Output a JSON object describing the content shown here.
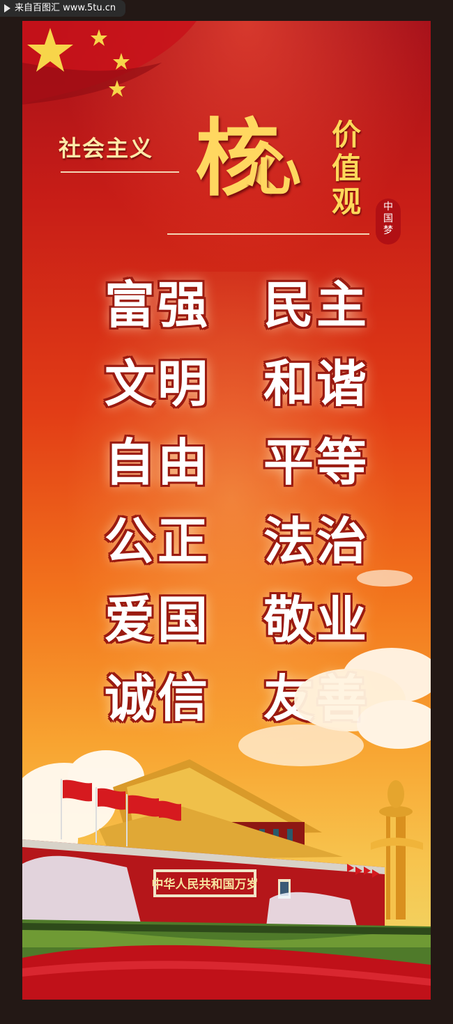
{
  "watermark": {
    "text": "来自百图汇 www.5tu.cn"
  },
  "header": {
    "left_title": "社会主义",
    "big_char_1": "核",
    "big_char_2": "心",
    "vertical_title": [
      "价",
      "值",
      "观"
    ],
    "badge_text": [
      "中",
      "国",
      "梦"
    ]
  },
  "values": [
    [
      "富强",
      "民主"
    ],
    [
      "文明",
      "和谐"
    ],
    [
      "自由",
      "平等"
    ],
    [
      "公正",
      "法治"
    ],
    [
      "爱国",
      "敬业"
    ],
    [
      "诚信",
      "友善"
    ]
  ],
  "gate_sign": "中华人民共和国万岁",
  "colors": {
    "poster_top": "#a5101a",
    "poster_mid": "#e23d16",
    "poster_bottom": "#f3cf5c",
    "gold": "#ffd760",
    "wall_red": "#b5161a"
  }
}
